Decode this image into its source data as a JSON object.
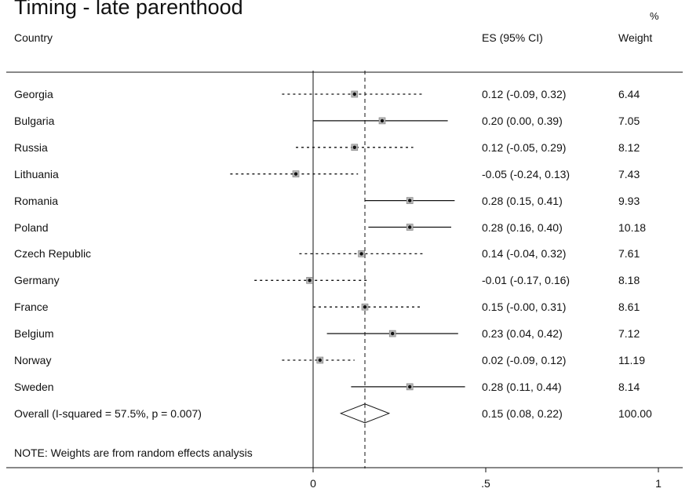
{
  "chart_data": {
    "type": "forest",
    "title": "Timing - late parenthood",
    "columns": {
      "label": "Country",
      "es": "ES (95% CI)",
      "weight_top": "%",
      "weight": "Weight"
    },
    "rows": [
      {
        "label": "Georgia",
        "es": 0.12,
        "lo": -0.09,
        "hi": 0.32,
        "es_text": "0.12 (-0.09, 0.32)",
        "weight": "6.44",
        "ci_style": "dotted"
      },
      {
        "label": "Bulgaria",
        "es": 0.2,
        "lo": 0.0,
        "hi": 0.39,
        "es_text": "0.20 (0.00, 0.39)",
        "weight": "7.05",
        "ci_style": "solid"
      },
      {
        "label": "Russia",
        "es": 0.12,
        "lo": -0.05,
        "hi": 0.29,
        "es_text": "0.12 (-0.05, 0.29)",
        "weight": "8.12",
        "ci_style": "dotted"
      },
      {
        "label": "Lithuania",
        "es": -0.05,
        "lo": -0.24,
        "hi": 0.13,
        "es_text": "-0.05 (-0.24, 0.13)",
        "weight": "7.43",
        "ci_style": "dotted"
      },
      {
        "label": "Romania",
        "es": 0.28,
        "lo": 0.15,
        "hi": 0.41,
        "es_text": "0.28 (0.15, 0.41)",
        "weight": "9.93",
        "ci_style": "solid"
      },
      {
        "label": "Poland",
        "es": 0.28,
        "lo": 0.16,
        "hi": 0.4,
        "es_text": "0.28 (0.16, 0.40)",
        "weight": "10.18",
        "ci_style": "solid"
      },
      {
        "label": "Czech Republic",
        "es": 0.14,
        "lo": -0.04,
        "hi": 0.32,
        "es_text": "0.14 (-0.04, 0.32)",
        "weight": "7.61",
        "ci_style": "dotted"
      },
      {
        "label": "Germany",
        "es": -0.01,
        "lo": -0.17,
        "hi": 0.16,
        "es_text": "-0.01 (-0.17, 0.16)",
        "weight": "8.18",
        "ci_style": "dotted"
      },
      {
        "label": "France",
        "es": 0.15,
        "lo": -0.0,
        "hi": 0.31,
        "es_text": "0.15 (-0.00, 0.31)",
        "weight": "8.61",
        "ci_style": "dotted"
      },
      {
        "label": "Belgium",
        "es": 0.23,
        "lo": 0.04,
        "hi": 0.42,
        "es_text": "0.23 (0.04, 0.42)",
        "weight": "7.12",
        "ci_style": "solid"
      },
      {
        "label": "Norway",
        "es": 0.02,
        "lo": -0.09,
        "hi": 0.12,
        "es_text": "0.02 (-0.09, 0.12)",
        "weight": "11.19",
        "ci_style": "dotted"
      },
      {
        "label": "Sweden",
        "es": 0.28,
        "lo": 0.11,
        "hi": 0.44,
        "es_text": "0.28 (0.11, 0.44)",
        "weight": "8.14",
        "ci_style": "solid"
      }
    ],
    "overall": {
      "label": "Overall  (I-squared = 57.5%, p = 0.007)",
      "es": 0.15,
      "lo": 0.08,
      "hi": 0.22,
      "es_text": "0.15 (0.08, 0.22)",
      "weight": "100.00"
    },
    "note": "NOTE: Weights are from random effects analysis",
    "x_ticks": [
      {
        "value": 0,
        "label": "0"
      },
      {
        "value": 0.5,
        "label": ".5"
      },
      {
        "value": 1,
        "label": "1"
      }
    ],
    "null_line": 0,
    "overall_line": 0.15,
    "colors": {
      "ink": "#111111",
      "marker_fill": "#b8b8b8"
    }
  }
}
